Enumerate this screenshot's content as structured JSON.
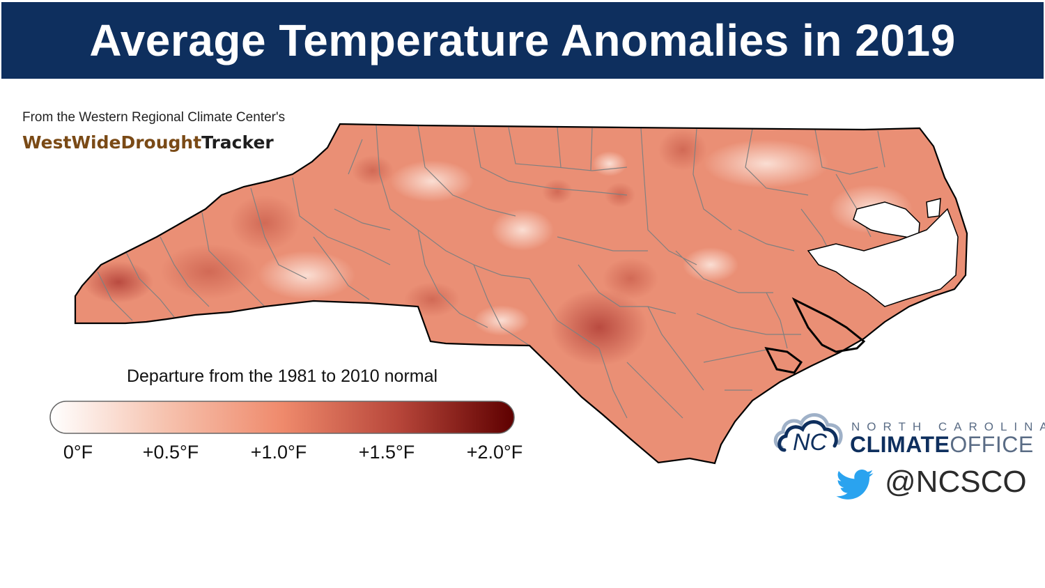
{
  "title": "Average Temperature Anomalies in 2019",
  "source": {
    "from_text": "From the Western Regional Climate Center's",
    "brand_part1": "WestWideDrought",
    "brand_part2": "Tracker"
  },
  "legend": {
    "title": "Departure from the 1981 to 2010 normal",
    "ticks": [
      "0°F",
      "+0.5°F",
      "+1.0°F",
      "+1.5°F",
      "+2.0°F"
    ],
    "color_stops": [
      "#ffffff",
      "#f5c5b0",
      "#ef8f70",
      "#b8493a",
      "#5e0000"
    ]
  },
  "map": {
    "region": "North Carolina",
    "base_color": "#ea8f75",
    "coast_color": "#000000",
    "county_line_color": "#808080"
  },
  "logo": {
    "small_text": "NORTH CAROLINA",
    "climate_text": "CLIMATE",
    "office_text": "OFFICE",
    "nc_initials": "NC",
    "handle": "@NCSCO"
  },
  "colors": {
    "title_bar": "#0e2f5e",
    "twitter_blue": "#2aa3ef"
  },
  "icons": {
    "cloud": "cloud-icon",
    "twitter": "twitter-bird-icon"
  }
}
